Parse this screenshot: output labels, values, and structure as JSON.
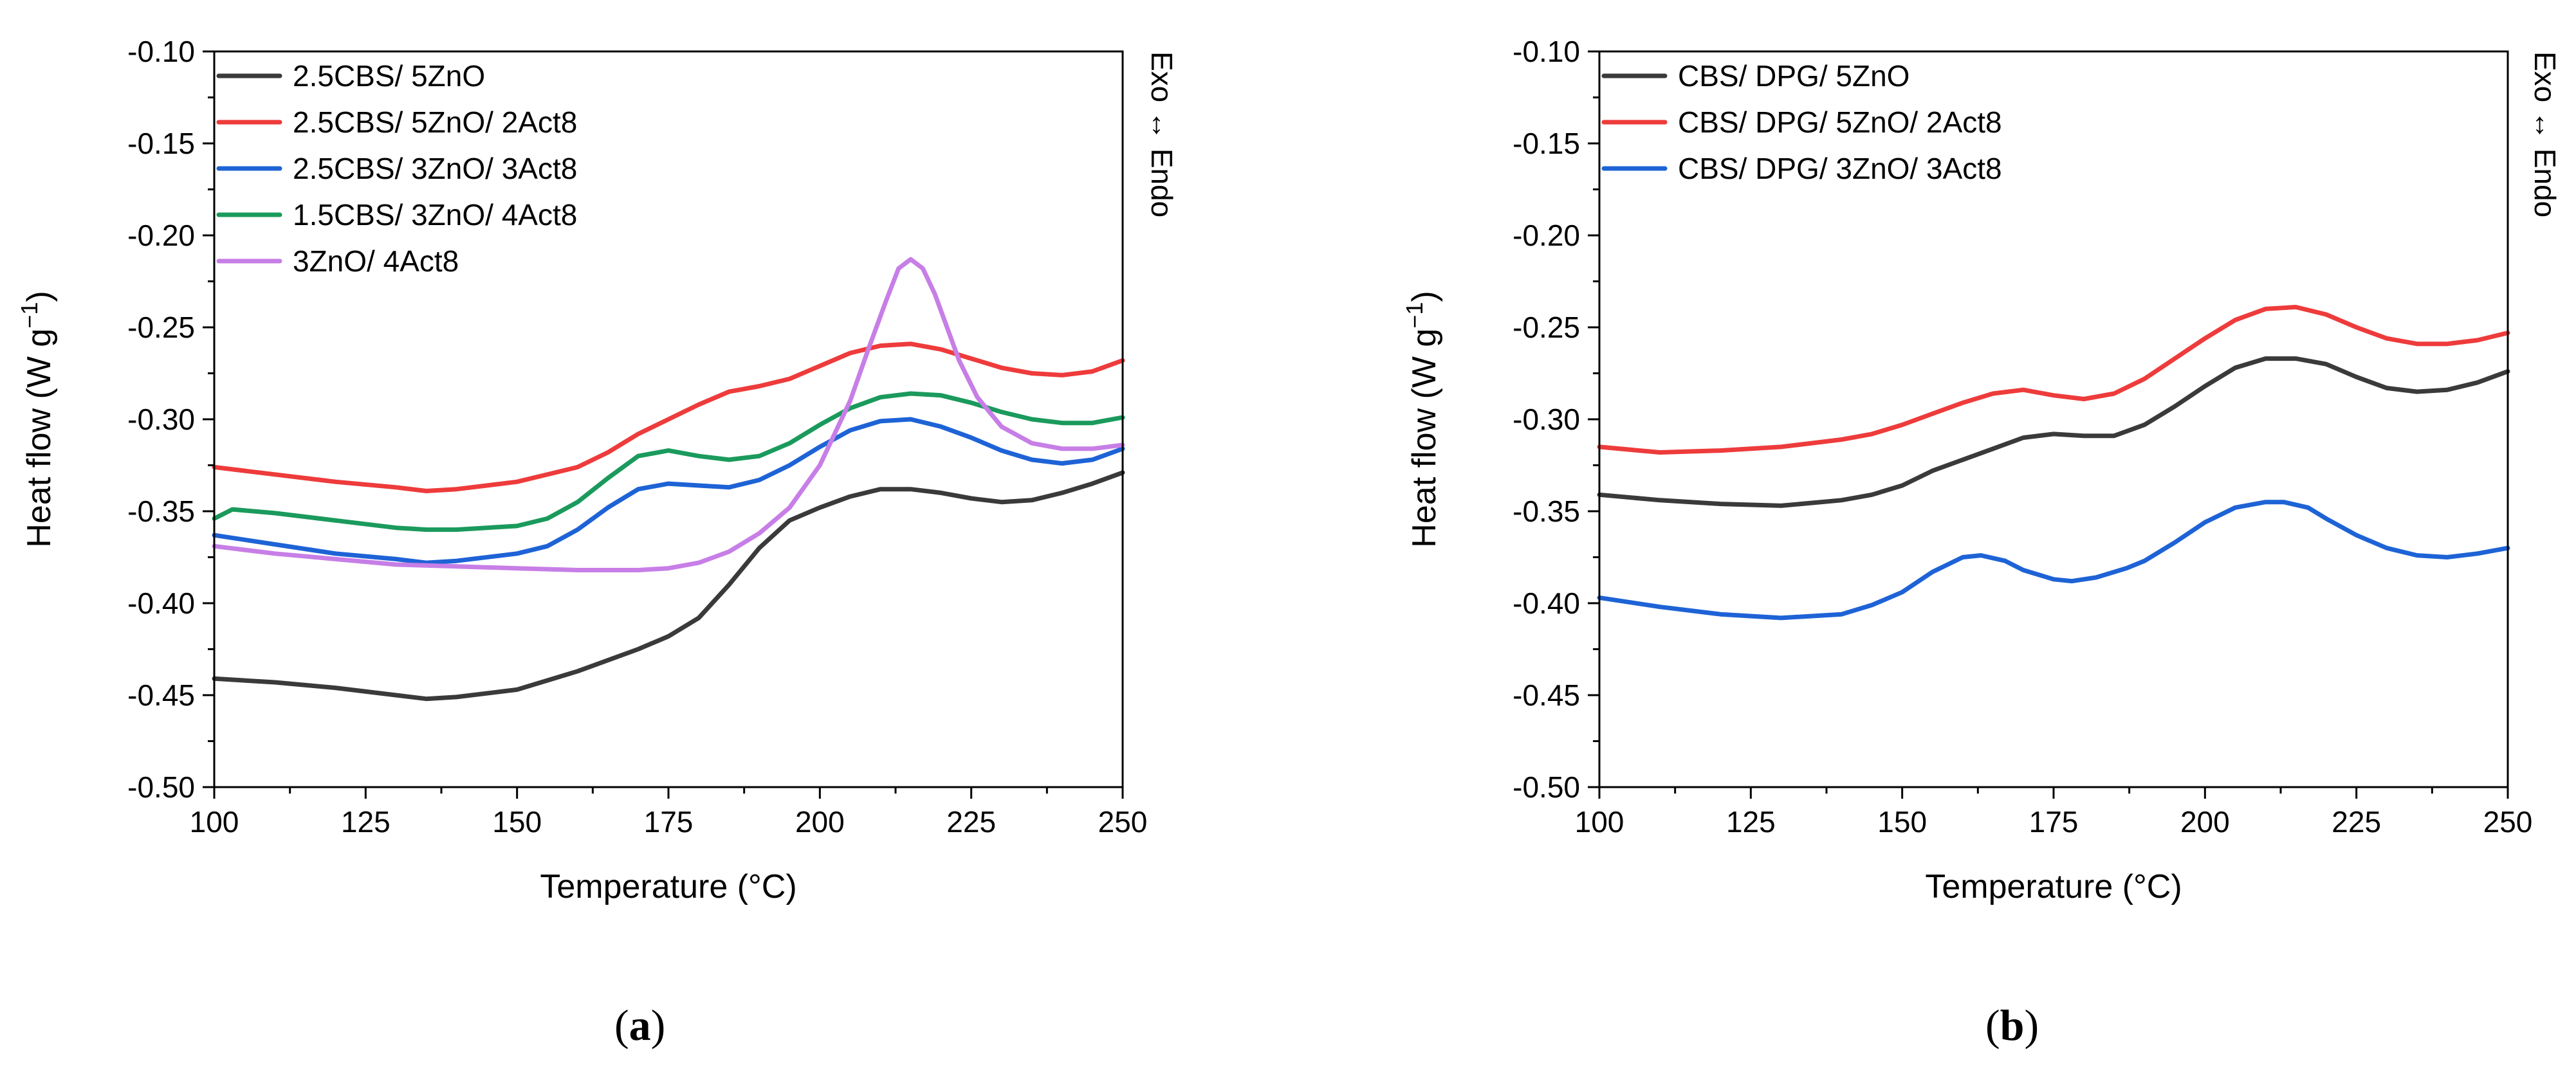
{
  "figure": {
    "panels": [
      {
        "caption_letter": "a"
      },
      {
        "caption_letter": "b"
      }
    ]
  },
  "chart_data": [
    {
      "type": "line",
      "panel": "a",
      "xlabel": "Temperature (°C)",
      "ylabel": "Heat flow (W g",
      "ylabel_superscript": "−1",
      "ylabel_suffix": ")",
      "side_label": "Exo ↔ Endo",
      "xlim": [
        100,
        250
      ],
      "ylim": [
        -0.5,
        -0.1
      ],
      "xticks": [
        100,
        125,
        150,
        175,
        200,
        225,
        250
      ],
      "yticks": [
        -0.1,
        -0.15,
        -0.2,
        -0.25,
        -0.3,
        -0.35,
        -0.4,
        -0.45,
        -0.5
      ],
      "ytick_labels": [
        "-0.10",
        "-0.15",
        "-0.20",
        "-0.25",
        "-0.30",
        "-0.35",
        "-0.40",
        "-0.45",
        "-0.50"
      ],
      "legend_position": "top-left",
      "series": [
        {
          "name": "2.5CBS/ 5ZnO",
          "color": "#3a3a3a",
          "x": [
            100,
            110,
            120,
            130,
            135,
            140,
            150,
            160,
            170,
            175,
            180,
            185,
            190,
            195,
            200,
            205,
            210,
            215,
            220,
            225,
            230,
            235,
            240,
            245,
            250
          ],
          "y": [
            -0.441,
            -0.443,
            -0.446,
            -0.45,
            -0.452,
            -0.451,
            -0.447,
            -0.437,
            -0.425,
            -0.418,
            -0.408,
            -0.39,
            -0.37,
            -0.355,
            -0.348,
            -0.342,
            -0.338,
            -0.338,
            -0.34,
            -0.343,
            -0.345,
            -0.344,
            -0.34,
            -0.335,
            -0.329
          ]
        },
        {
          "name": "2.5CBS/ 5ZnO/ 2Act8",
          "color": "#ee3b3b",
          "x": [
            100,
            110,
            120,
            130,
            135,
            140,
            150,
            160,
            165,
            170,
            175,
            180,
            185,
            190,
            195,
            200,
            205,
            210,
            215,
            220,
            225,
            230,
            235,
            240,
            245,
            250
          ],
          "y": [
            -0.326,
            -0.33,
            -0.334,
            -0.337,
            -0.339,
            -0.338,
            -0.334,
            -0.326,
            -0.318,
            -0.308,
            -0.3,
            -0.292,
            -0.285,
            -0.282,
            -0.278,
            -0.271,
            -0.264,
            -0.26,
            -0.259,
            -0.262,
            -0.267,
            -0.272,
            -0.275,
            -0.276,
            -0.274,
            -0.268
          ]
        },
        {
          "name": "2.5CBS/ 3ZnO/ 3Act8",
          "color": "#1e63d6",
          "x": [
            100,
            110,
            120,
            130,
            135,
            140,
            150,
            155,
            160,
            165,
            170,
            175,
            180,
            185,
            190,
            195,
            200,
            205,
            210,
            215,
            220,
            225,
            230,
            235,
            240,
            245,
            250
          ],
          "y": [
            -0.363,
            -0.368,
            -0.373,
            -0.376,
            -0.378,
            -0.377,
            -0.373,
            -0.369,
            -0.36,
            -0.348,
            -0.338,
            -0.335,
            -0.336,
            -0.337,
            -0.333,
            -0.325,
            -0.315,
            -0.306,
            -0.301,
            -0.3,
            -0.304,
            -0.31,
            -0.317,
            -0.322,
            -0.324,
            -0.322,
            -0.316
          ]
        },
        {
          "name": "1.5CBS/ 3ZnO/ 4Act8",
          "color": "#1a9a5c",
          "x": [
            100,
            103,
            110,
            120,
            130,
            135,
            140,
            150,
            155,
            160,
            165,
            170,
            175,
            180,
            185,
            190,
            195,
            200,
            205,
            210,
            215,
            220,
            225,
            230,
            235,
            240,
            245,
            250
          ],
          "y": [
            -0.354,
            -0.349,
            -0.351,
            -0.355,
            -0.359,
            -0.36,
            -0.36,
            -0.358,
            -0.354,
            -0.345,
            -0.332,
            -0.32,
            -0.317,
            -0.32,
            -0.322,
            -0.32,
            -0.313,
            -0.303,
            -0.294,
            -0.288,
            -0.286,
            -0.287,
            -0.291,
            -0.296,
            -0.3,
            -0.302,
            -0.302,
            -0.299
          ]
        },
        {
          "name": "3ZnO/ 4Act8",
          "color": "#c77ee6",
          "x": [
            100,
            110,
            120,
            130,
            140,
            150,
            160,
            170,
            175,
            180,
            185,
            190,
            195,
            200,
            205,
            208,
            211,
            213,
            215,
            217,
            219,
            221,
            223,
            226,
            230,
            235,
            240,
            245,
            250
          ],
          "y": [
            -0.369,
            -0.373,
            -0.376,
            -0.379,
            -0.38,
            -0.381,
            -0.382,
            -0.382,
            -0.381,
            -0.378,
            -0.372,
            -0.362,
            -0.348,
            -0.325,
            -0.29,
            -0.262,
            -0.235,
            -0.218,
            -0.213,
            -0.218,
            -0.232,
            -0.25,
            -0.268,
            -0.288,
            -0.304,
            -0.313,
            -0.316,
            -0.316,
            -0.314
          ]
        }
      ]
    },
    {
      "type": "line",
      "panel": "b",
      "xlabel": "Temperature (°C)",
      "ylabel": "Heat flow (W g",
      "ylabel_superscript": "−1",
      "ylabel_suffix": ")",
      "side_label": "Exo ↔ Endo",
      "xlim": [
        100,
        250
      ],
      "ylim": [
        -0.5,
        -0.1
      ],
      "xticks": [
        100,
        125,
        150,
        175,
        200,
        225,
        250
      ],
      "yticks": [
        -0.1,
        -0.15,
        -0.2,
        -0.25,
        -0.3,
        -0.35,
        -0.4,
        -0.45,
        -0.5
      ],
      "ytick_labels": [
        "-0.10",
        "-0.15",
        "-0.20",
        "-0.25",
        "-0.30",
        "-0.35",
        "-0.40",
        "-0.45",
        "-0.50"
      ],
      "legend_position": "top-left",
      "series": [
        {
          "name": "CBS/ DPG/ 5ZnO",
          "color": "#3a3a3a",
          "x": [
            100,
            110,
            120,
            130,
            140,
            145,
            150,
            155,
            160,
            165,
            170,
            175,
            180,
            185,
            190,
            195,
            200,
            205,
            210,
            215,
            220,
            225,
            230,
            235,
            240,
            245,
            250
          ],
          "y": [
            -0.341,
            -0.344,
            -0.346,
            -0.347,
            -0.344,
            -0.341,
            -0.336,
            -0.328,
            -0.322,
            -0.316,
            -0.31,
            -0.308,
            -0.309,
            -0.309,
            -0.303,
            -0.293,
            -0.282,
            -0.272,
            -0.267,
            -0.267,
            -0.27,
            -0.277,
            -0.283,
            -0.285,
            -0.284,
            -0.28,
            -0.274
          ]
        },
        {
          "name": "CBS/ DPG/ 5ZnO/ 2Act8",
          "color": "#ee3b3b",
          "x": [
            100,
            110,
            120,
            130,
            140,
            145,
            150,
            155,
            160,
            165,
            170,
            175,
            180,
            185,
            190,
            195,
            200,
            205,
            210,
            215,
            220,
            225,
            230,
            235,
            240,
            245,
            250
          ],
          "y": [
            -0.315,
            -0.318,
            -0.317,
            -0.315,
            -0.311,
            -0.308,
            -0.303,
            -0.297,
            -0.291,
            -0.286,
            -0.284,
            -0.287,
            -0.289,
            -0.286,
            -0.278,
            -0.267,
            -0.256,
            -0.246,
            -0.24,
            -0.239,
            -0.243,
            -0.25,
            -0.256,
            -0.259,
            -0.259,
            -0.257,
            -0.253
          ]
        },
        {
          "name": "CBS/ DPG/ 3ZnO/ 3Act8",
          "color": "#1e63d6",
          "x": [
            100,
            110,
            120,
            130,
            140,
            145,
            150,
            155,
            160,
            163,
            167,
            170,
            175,
            178,
            182,
            187,
            190,
            195,
            200,
            205,
            210,
            213,
            217,
            220,
            225,
            230,
            235,
            240,
            245,
            250
          ],
          "y": [
            -0.397,
            -0.402,
            -0.406,
            -0.408,
            -0.406,
            -0.401,
            -0.394,
            -0.383,
            -0.375,
            -0.374,
            -0.377,
            -0.382,
            -0.387,
            -0.388,
            -0.386,
            -0.381,
            -0.377,
            -0.367,
            -0.356,
            -0.348,
            -0.345,
            -0.345,
            -0.348,
            -0.354,
            -0.363,
            -0.37,
            -0.374,
            -0.375,
            -0.373,
            -0.37
          ]
        }
      ]
    }
  ]
}
